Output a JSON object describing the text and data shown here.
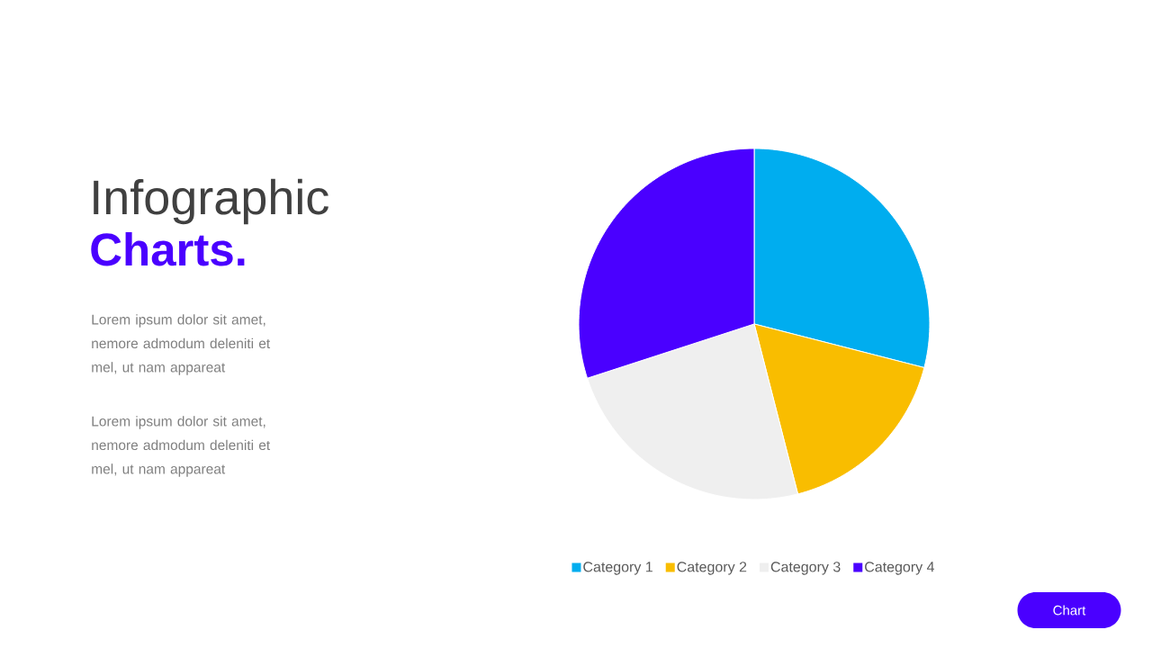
{
  "chart_data": {
    "type": "pie",
    "title": "Infographic",
    "subtitle": "Charts.",
    "categories": [
      "Category 1",
      "Category 2",
      "Category 3",
      "Category 4"
    ],
    "values": [
      29,
      17,
      24,
      30
    ],
    "colors": [
      "#00adef",
      "#f9bd00",
      "#efefef",
      "#4a00ff"
    ],
    "legend": "bottom",
    "annotations": [
      "Lorem ipsum dolor sit amet, nemore admodum deleniti et mel, ut nam appareat",
      "Lorem ipsum dolor sit amet, nemore admodum deleniti et mel, ut nam appareat",
      "Chart"
    ]
  }
}
